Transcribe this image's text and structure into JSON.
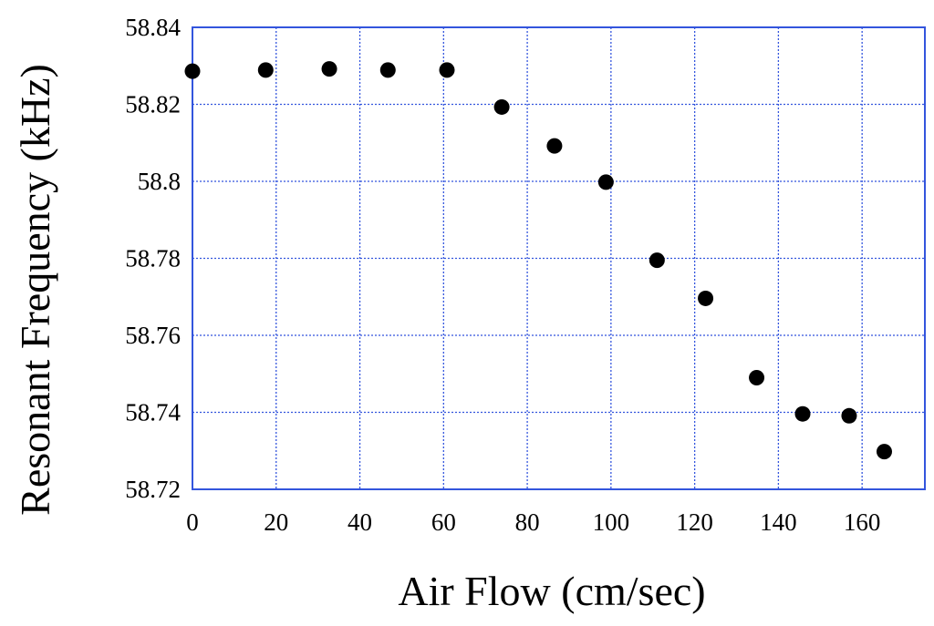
{
  "chart_data": {
    "type": "scatter",
    "xlabel": "Air Flow (cm/sec)",
    "ylabel": "Resonant Frequency (kHz)",
    "xlim": [
      0,
      175
    ],
    "ylim": [
      58.72,
      58.84
    ],
    "x_ticks": [
      0,
      20,
      40,
      60,
      80,
      100,
      120,
      140,
      160
    ],
    "x_tick_labels": [
      "0",
      "20",
      "40",
      "60",
      "80",
      "100",
      "120",
      "140",
      "160"
    ],
    "y_ticks": [
      58.72,
      58.74,
      58.76,
      58.78,
      58.8,
      58.82,
      58.84
    ],
    "y_tick_labels": [
      "58.72",
      "58.74",
      "58.76",
      "58.78",
      "58.8",
      "58.82",
      "58.84"
    ],
    "grid": true,
    "legend": "none",
    "colors": {
      "grid": "#3355dd",
      "frame": "#3355dd",
      "marker": "#000000"
    },
    "series": [
      {
        "points": [
          {
            "x": 0,
            "y": 58.8286
          },
          {
            "x": 17.5,
            "y": 58.8289
          },
          {
            "x": 32.7,
            "y": 58.8292
          },
          {
            "x": 46.7,
            "y": 58.8289
          },
          {
            "x": 60.8,
            "y": 58.8289
          },
          {
            "x": 73.9,
            "y": 58.8193
          },
          {
            "x": 86.5,
            "y": 58.8092
          },
          {
            "x": 98.8,
            "y": 58.7998
          },
          {
            "x": 111.0,
            "y": 58.7795
          },
          {
            "x": 122.6,
            "y": 58.7696
          },
          {
            "x": 134.8,
            "y": 58.749
          },
          {
            "x": 145.8,
            "y": 58.7396
          },
          {
            "x": 156.9,
            "y": 58.7391
          },
          {
            "x": 165.3,
            "y": 58.7298
          }
        ]
      }
    ]
  }
}
